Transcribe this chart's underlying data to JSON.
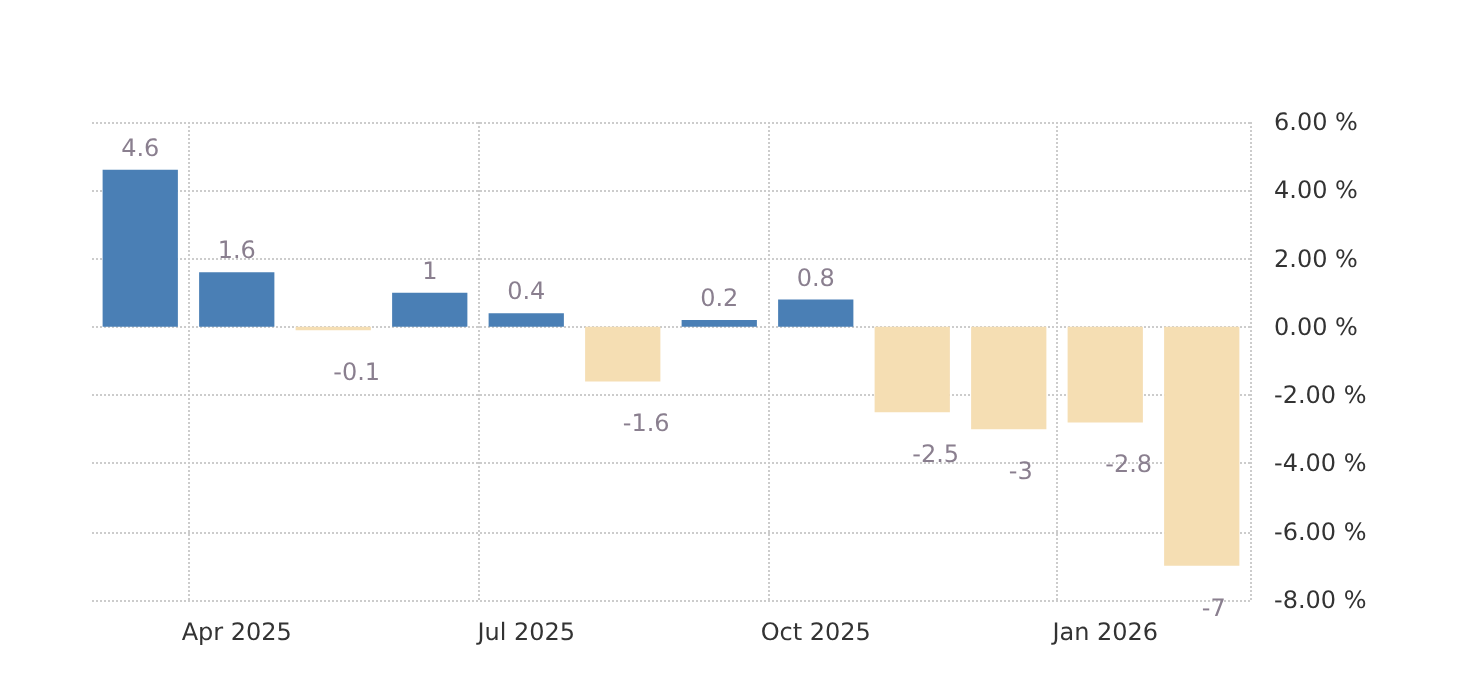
{
  "chart_data": {
    "type": "bar",
    "categories": [
      null,
      "Apr 2025",
      null,
      null,
      "Jul 2025",
      null,
      null,
      "Oct 2025",
      null,
      null,
      "Jan 2026",
      null
    ],
    "values": [
      4.6,
      1.6,
      -0.1,
      1,
      0.4,
      -1.6,
      0.2,
      0.8,
      -2.5,
      -3,
      -2.8,
      -7
    ],
    "colors": [
      "#4a7fb5",
      "#4a7fb5",
      "#f5deb3",
      "#4a7fb5",
      "#4a7fb5",
      "#f5deb3",
      "#4a7fb5",
      "#4a7fb5",
      "#f5deb3",
      "#f5deb3",
      "#f5deb3",
      "#f5deb3"
    ],
    "ylim": [
      -8,
      6
    ],
    "yticks": [
      {
        "value": -8,
        "label": "-8.00 %"
      },
      {
        "value": -6,
        "label": "-6.00 %"
      },
      {
        "value": -4,
        "label": "-4.00 %"
      },
      {
        "value": -2,
        "label": "-2.00 %"
      },
      {
        "value": 0,
        "label": "0.00 %"
      },
      {
        "value": 2,
        "label": "2.00 %"
      },
      {
        "value": 4,
        "label": "4.00 %"
      },
      {
        "value": 6,
        "label": "6.00 %"
      }
    ],
    "grid": true,
    "data_labels": true
  }
}
